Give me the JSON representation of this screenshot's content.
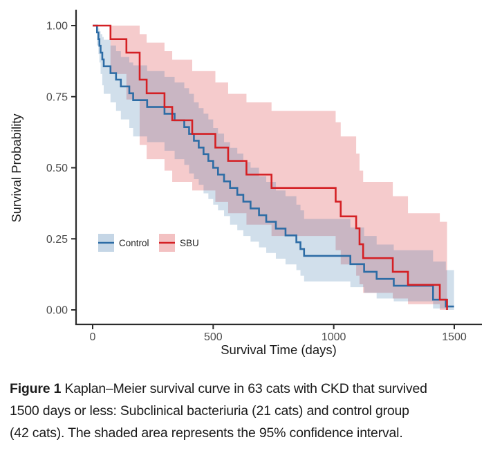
{
  "chart": {
    "y_axis": {
      "label": "Survival Probability",
      "tick_labels": [
        "1.00",
        "0.75",
        "0.50",
        "0.25",
        "0.00"
      ],
      "tick_values": [
        1.0,
        0.75,
        0.5,
        0.25,
        0.0
      ]
    },
    "x_axis": {
      "label": "Survival Time (days)",
      "tick_labels": [
        "0",
        "500",
        "1000",
        "1500"
      ],
      "tick_values": [
        0,
        500,
        1000,
        1500
      ]
    },
    "colors": {
      "control_line": "#2d6ca5",
      "sbu_line": "#d42024",
      "axis_line": "#2b2b2b",
      "tick_label": "#4d4d4d",
      "axis_title": "#1a1a1a"
    }
  },
  "chart_data": {
    "type": "line",
    "subtype": "kaplan-meier-step",
    "title": "",
    "xlabel": "Survival Time (days)",
    "ylabel": "Survival Probability",
    "xlim": [
      0,
      1500
    ],
    "ylim": [
      0,
      1.0
    ],
    "grid": false,
    "legend_position": "inside-bottom-left",
    "series": [
      {
        "name": "Control",
        "n_cats": 42,
        "color": "#2d6ca5",
        "band_opacity": 0.22,
        "end_day": 1499,
        "steps": [
          [
            0,
            1.0
          ],
          [
            18,
            0.976
          ],
          [
            24,
            0.952
          ],
          [
            28,
            0.929
          ],
          [
            33,
            0.905
          ],
          [
            40,
            0.881
          ],
          [
            46,
            0.857
          ],
          [
            74,
            0.833
          ],
          [
            97,
            0.81
          ],
          [
            117,
            0.786
          ],
          [
            152,
            0.762
          ],
          [
            168,
            0.738
          ],
          [
            226,
            0.714
          ],
          [
            298,
            0.69
          ],
          [
            340,
            0.667
          ],
          [
            380,
            0.643
          ],
          [
            400,
            0.619
          ],
          [
            420,
            0.595
          ],
          [
            440,
            0.571
          ],
          [
            460,
            0.548
          ],
          [
            480,
            0.524
          ],
          [
            500,
            0.5
          ],
          [
            520,
            0.476
          ],
          [
            545,
            0.452
          ],
          [
            570,
            0.429
          ],
          [
            600,
            0.405
          ],
          [
            625,
            0.381
          ],
          [
            655,
            0.357
          ],
          [
            690,
            0.333
          ],
          [
            720,
            0.31
          ],
          [
            760,
            0.286
          ],
          [
            800,
            0.262
          ],
          [
            845,
            0.238
          ],
          [
            862,
            0.214
          ],
          [
            877,
            0.19
          ],
          [
            1069,
            0.161
          ],
          [
            1126,
            0.134
          ],
          [
            1178,
            0.109
          ],
          [
            1249,
            0.085
          ],
          [
            1412,
            0.036
          ],
          [
            1465,
            0.012
          ]
        ],
        "ci_95": [
          [
            0,
            1.0,
            1.0
          ],
          [
            18,
            0.93,
            1.0
          ],
          [
            24,
            0.9,
            0.99
          ],
          [
            28,
            0.87,
            0.98
          ],
          [
            33,
            0.83,
            0.97
          ],
          [
            40,
            0.79,
            0.96
          ],
          [
            46,
            0.76,
            0.95
          ],
          [
            74,
            0.73,
            0.93
          ],
          [
            97,
            0.7,
            0.91
          ],
          [
            117,
            0.67,
            0.89
          ],
          [
            152,
            0.64,
            0.87
          ],
          [
            168,
            0.61,
            0.86
          ],
          [
            226,
            0.59,
            0.84
          ],
          [
            298,
            0.56,
            0.82
          ],
          [
            340,
            0.53,
            0.8
          ],
          [
            380,
            0.51,
            0.78
          ],
          [
            400,
            0.48,
            0.76
          ],
          [
            420,
            0.46,
            0.73
          ],
          [
            440,
            0.44,
            0.71
          ],
          [
            460,
            0.41,
            0.69
          ],
          [
            480,
            0.39,
            0.67
          ],
          [
            500,
            0.37,
            0.64
          ],
          [
            520,
            0.35,
            0.62
          ],
          [
            545,
            0.33,
            0.59
          ],
          [
            570,
            0.3,
            0.57
          ],
          [
            600,
            0.28,
            0.55
          ],
          [
            625,
            0.26,
            0.52
          ],
          [
            655,
            0.24,
            0.5
          ],
          [
            690,
            0.22,
            0.47
          ],
          [
            720,
            0.2,
            0.45
          ],
          [
            760,
            0.18,
            0.42
          ],
          [
            800,
            0.16,
            0.4
          ],
          [
            845,
            0.14,
            0.37
          ],
          [
            862,
            0.12,
            0.35
          ],
          [
            877,
            0.1,
            0.32
          ],
          [
            1069,
            0.08,
            0.29
          ],
          [
            1126,
            0.06,
            0.26
          ],
          [
            1178,
            0.04,
            0.23
          ],
          [
            1249,
            0.03,
            0.21
          ],
          [
            1412,
            0.005,
            0.17
          ],
          [
            1465,
            0.0,
            0.14
          ]
        ]
      },
      {
        "name": "SBU",
        "n_cats": 21,
        "color": "#d42024",
        "band_opacity": 0.23,
        "end_day": 1470,
        "steps": [
          [
            0,
            1.0
          ],
          [
            74,
            0.952
          ],
          [
            140,
            0.905
          ],
          [
            195,
            0.81
          ],
          [
            224,
            0.762
          ],
          [
            298,
            0.714
          ],
          [
            330,
            0.667
          ],
          [
            413,
            0.619
          ],
          [
            509,
            0.571
          ],
          [
            562,
            0.524
          ],
          [
            638,
            0.476
          ],
          [
            742,
            0.429
          ],
          [
            1008,
            0.381
          ],
          [
            1029,
            0.329
          ],
          [
            1093,
            0.287
          ],
          [
            1107,
            0.231
          ],
          [
            1122,
            0.182
          ],
          [
            1245,
            0.134
          ],
          [
            1308,
            0.088
          ],
          [
            1440,
            0.036
          ],
          [
            1470,
            0.0
          ]
        ],
        "ci_95": [
          [
            0,
            1.0,
            1.0
          ],
          [
            74,
            0.83,
            1.0
          ],
          [
            140,
            0.74,
            1.0
          ],
          [
            195,
            0.58,
            0.97
          ],
          [
            224,
            0.53,
            0.94
          ],
          [
            298,
            0.49,
            0.91
          ],
          [
            330,
            0.45,
            0.88
          ],
          [
            413,
            0.42,
            0.84
          ],
          [
            509,
            0.38,
            0.8
          ],
          [
            562,
            0.34,
            0.76
          ],
          [
            638,
            0.3,
            0.73
          ],
          [
            742,
            0.26,
            0.7
          ],
          [
            1008,
            0.21,
            0.66
          ],
          [
            1029,
            0.16,
            0.61
          ],
          [
            1093,
            0.12,
            0.55
          ],
          [
            1107,
            0.09,
            0.49
          ],
          [
            1122,
            0.06,
            0.45
          ],
          [
            1245,
            0.04,
            0.4
          ],
          [
            1308,
            0.02,
            0.34
          ],
          [
            1440,
            0.0,
            0.31
          ]
        ]
      }
    ],
    "legend": [
      {
        "label": "Control",
        "color": "#2d6ca5"
      },
      {
        "label": "SBU",
        "color": "#d42024"
      }
    ],
    "ci_note": "shaded area = 95% confidence interval"
  },
  "caption": {
    "label": "Figure 1",
    "lines": [
      "Kaplan–Meier survival curve in 63 cats with CKD that survived",
      "1500 days or less: Subclinical bacteriuria (21 cats) and control group",
      "(42 cats). The shaded area represents the 95% confidence interval."
    ]
  }
}
